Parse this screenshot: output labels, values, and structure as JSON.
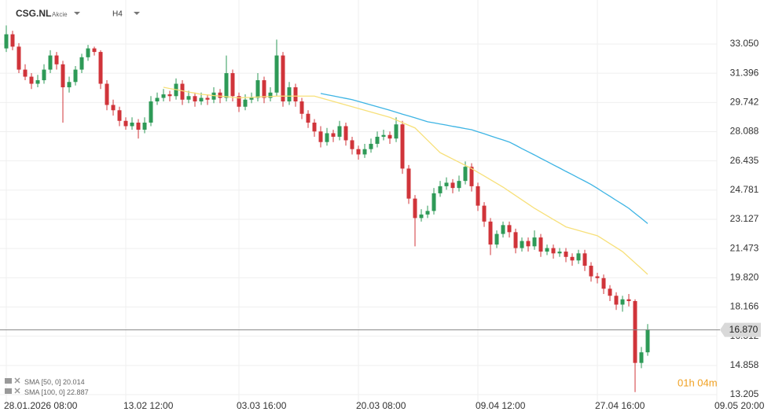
{
  "chart_data": {
    "type": "candlestick",
    "symbol": "CSG.NL",
    "instrument_type": "Akcie",
    "timeframe": "H4",
    "countdown": "01h 04m",
    "last_price": {
      "value": 16.87,
      "label": "16.870"
    },
    "grid": true,
    "up_color": "#2e9a57",
    "down_color": "#d0343a",
    "ylim": [
      12.76,
      35.54
    ],
    "yticks": [
      {
        "value": 33.05,
        "label": "33.050"
      },
      31.396,
      29.742,
      28.088,
      26.435,
      24.781,
      23.127,
      21.473,
      {
        "value": 19.82,
        "label": "19.820"
      },
      18.166,
      16.512,
      14.858,
      13.205
    ],
    "categories": [
      "28.01.2026 08:00",
      null,
      null,
      null,
      null,
      null,
      null,
      null,
      null,
      null,
      null,
      null,
      null,
      null,
      null,
      null,
      null,
      null,
      null,
      "13.02 12:00",
      null,
      null,
      null,
      null,
      null,
      null,
      null,
      null,
      null,
      null,
      null,
      null,
      null,
      null,
      null,
      null,
      null,
      "03.03 16:00",
      null,
      null,
      null,
      null,
      null,
      null,
      null,
      null,
      null,
      null,
      null,
      null,
      null,
      null,
      null,
      null,
      null,
      null,
      "20.03 08:00",
      null,
      null,
      null,
      null,
      null,
      null,
      null,
      null,
      null,
      null,
      null,
      null,
      null,
      null,
      null,
      null,
      null,
      null,
      "09.04 12:00",
      null,
      null,
      null,
      null,
      null,
      null,
      null,
      null,
      null,
      null,
      null,
      null,
      null,
      null,
      null,
      null,
      null,
      null,
      "27.04 16:00",
      null,
      null,
      null,
      null,
      null,
      null,
      null,
      null,
      null,
      null,
      null,
      null,
      null,
      null,
      null,
      null,
      null,
      null,
      "09.05 20:00"
    ],
    "candles": {
      "values": [
        [
          32.8,
          34.1,
          32.6,
          33.6
        ],
        [
          33.6,
          33.8,
          32.7,
          32.9
        ],
        [
          32.9,
          33.1,
          31.4,
          31.6
        ],
        [
          31.6,
          31.9,
          31.0,
          31.2
        ],
        [
          31.2,
          31.4,
          30.5,
          30.8
        ],
        [
          30.8,
          31.3,
          30.6,
          31.0
        ],
        [
          31.0,
          31.9,
          30.8,
          31.6
        ],
        [
          31.6,
          32.7,
          31.4,
          32.4
        ],
        [
          32.4,
          32.6,
          31.6,
          31.9
        ],
        [
          31.9,
          32.1,
          28.6,
          30.6
        ],
        [
          30.6,
          31.2,
          30.3,
          30.9
        ],
        [
          30.9,
          31.8,
          30.7,
          31.6
        ],
        [
          31.6,
          32.5,
          31.4,
          32.3
        ],
        [
          32.3,
          33.0,
          32.1,
          32.8
        ],
        [
          32.8,
          32.9,
          32.4,
          32.6
        ],
        [
          32.6,
          32.7,
          30.5,
          30.8
        ],
        [
          30.8,
          31.0,
          29.3,
          29.6
        ],
        [
          29.6,
          29.9,
          29.0,
          29.3
        ],
        [
          29.3,
          29.5,
          28.4,
          28.7
        ],
        [
          28.7,
          28.9,
          28.2,
          28.4
        ],
        [
          28.4,
          28.9,
          28.2,
          28.6
        ],
        [
          28.6,
          28.8,
          27.7,
          28.2
        ],
        [
          28.2,
          28.9,
          28.0,
          28.6
        ],
        [
          28.6,
          30.1,
          28.4,
          29.8
        ],
        [
          29.8,
          30.3,
          29.6,
          30.0
        ],
        [
          30.0,
          30.5,
          29.8,
          30.2
        ],
        [
          30.2,
          30.4,
          29.8,
          30.1
        ],
        [
          30.1,
          31.1,
          29.9,
          30.8
        ],
        [
          30.8,
          31.0,
          29.6,
          29.9
        ],
        [
          29.9,
          30.4,
          29.7,
          30.1
        ],
        [
          30.1,
          30.3,
          29.5,
          29.8
        ],
        [
          29.8,
          30.3,
          29.6,
          30.0
        ],
        [
          30.0,
          30.2,
          29.6,
          29.9
        ],
        [
          29.9,
          30.6,
          29.7,
          30.3
        ],
        [
          30.3,
          30.5,
          29.7,
          30.0
        ],
        [
          30.0,
          32.4,
          29.8,
          31.4
        ],
        [
          31.4,
          31.6,
          29.8,
          30.1
        ],
        [
          30.1,
          30.3,
          29.2,
          29.5
        ],
        [
          29.5,
          30.2,
          29.3,
          29.9
        ],
        [
          29.9,
          30.3,
          29.7,
          30.0
        ],
        [
          30.0,
          31.4,
          29.8,
          31.0
        ],
        [
          31.0,
          31.2,
          29.7,
          30.0
        ],
        [
          30.0,
          30.6,
          29.8,
          30.3
        ],
        [
          30.3,
          33.3,
          30.1,
          32.4
        ],
        [
          32.4,
          32.6,
          29.5,
          29.8
        ],
        [
          29.8,
          30.9,
          29.6,
          30.6
        ],
        [
          30.6,
          30.8,
          29.5,
          29.8
        ],
        [
          29.8,
          30.0,
          28.8,
          29.1
        ],
        [
          29.1,
          29.3,
          28.3,
          28.6
        ],
        [
          28.6,
          28.8,
          27.8,
          28.1
        ],
        [
          28.1,
          28.4,
          27.2,
          27.5
        ],
        [
          27.5,
          28.3,
          27.3,
          28.0
        ],
        [
          28.0,
          28.2,
          27.5,
          27.8
        ],
        [
          27.8,
          28.7,
          27.6,
          28.4
        ],
        [
          28.4,
          28.6,
          27.3,
          27.6
        ],
        [
          27.6,
          27.8,
          26.8,
          27.1
        ],
        [
          27.1,
          27.3,
          26.5,
          26.8
        ],
        [
          26.8,
          27.4,
          26.6,
          27.1
        ],
        [
          27.1,
          27.7,
          26.9,
          27.4
        ],
        [
          27.4,
          28.1,
          27.2,
          27.8
        ],
        [
          27.8,
          28.2,
          27.6,
          27.9
        ],
        [
          27.9,
          28.1,
          27.4,
          27.7
        ],
        [
          27.7,
          28.9,
          27.5,
          28.5
        ],
        [
          28.5,
          28.7,
          25.7,
          26.0
        ],
        [
          26.0,
          26.2,
          24.0,
          24.3
        ],
        [
          24.3,
          24.5,
          21.6,
          23.2
        ],
        [
          23.2,
          23.7,
          23.0,
          23.4
        ],
        [
          23.4,
          23.9,
          23.2,
          23.6
        ],
        [
          23.6,
          24.9,
          23.4,
          24.6
        ],
        [
          24.6,
          25.3,
          24.4,
          25.0
        ],
        [
          25.0,
          25.5,
          24.8,
          25.2
        ],
        [
          25.2,
          25.4,
          24.6,
          24.9
        ],
        [
          24.9,
          25.6,
          24.7,
          25.3
        ],
        [
          25.3,
          26.4,
          25.1,
          26.1
        ],
        [
          26.1,
          26.3,
          24.7,
          25.0
        ],
        [
          25.0,
          25.2,
          23.6,
          23.9
        ],
        [
          23.9,
          24.1,
          22.7,
          23.0
        ],
        [
          23.0,
          23.2,
          21.1,
          21.7
        ],
        [
          21.7,
          22.5,
          21.5,
          22.3
        ],
        [
          22.3,
          23.0,
          22.1,
          22.8
        ],
        [
          22.8,
          23.0,
          22.1,
          22.4
        ],
        [
          22.4,
          22.6,
          21.2,
          21.5
        ],
        [
          21.5,
          22.1,
          21.3,
          21.9
        ],
        [
          21.9,
          22.1,
          21.3,
          21.6
        ],
        [
          21.6,
          22.5,
          21.4,
          22.1
        ],
        [
          22.1,
          22.3,
          21.0,
          21.3
        ],
        [
          21.3,
          21.7,
          21.1,
          21.5
        ],
        [
          21.5,
          21.7,
          20.9,
          21.2
        ],
        [
          21.2,
          21.5,
          21.0,
          21.3
        ],
        [
          21.3,
          21.5,
          20.7,
          21.0
        ],
        [
          21.0,
          21.2,
          20.5,
          20.8
        ],
        [
          20.8,
          21.4,
          20.6,
          21.2
        ],
        [
          21.2,
          21.4,
          20.2,
          20.5
        ],
        [
          20.5,
          20.7,
          19.6,
          19.9
        ],
        [
          19.9,
          20.1,
          19.5,
          19.8
        ],
        [
          19.8,
          20.0,
          18.9,
          19.2
        ],
        [
          19.2,
          19.4,
          18.5,
          18.8
        ],
        [
          18.8,
          19.0,
          18.0,
          18.3
        ],
        [
          18.3,
          18.8,
          17.9,
          18.6
        ],
        [
          18.6,
          18.9,
          18.2,
          18.5
        ],
        [
          18.5,
          18.6,
          13.35,
          15.0
        ],
        [
          15.0,
          15.9,
          14.7,
          15.6
        ],
        [
          15.6,
          17.2,
          15.4,
          16.9
        ],
        null,
        null,
        null,
        null,
        null,
        null,
        null,
        null,
        null,
        null,
        null
      ]
    },
    "series": [
      {
        "name": "SMA [50, 0]",
        "color": "#f7e07a",
        "values": [
          null,
          null,
          null,
          null,
          null,
          null,
          null,
          null,
          null,
          null,
          null,
          null,
          null,
          null,
          null,
          null,
          null,
          null,
          null,
          null,
          null,
          null,
          null,
          null,
          null,
          30.6,
          30.53,
          30.47,
          30.4,
          30.33,
          30.27,
          30.2,
          30.17,
          30.13,
          30.1,
          30.07,
          30.03,
          30.0,
          30.02,
          30.03,
          30.05,
          30.07,
          30.08,
          30.1,
          30.1,
          30.1,
          30.1,
          30.1,
          30.1,
          30.1,
          30.0,
          29.9,
          29.8,
          29.7,
          29.6,
          29.5,
          29.4,
          29.3,
          29.2,
          29.1,
          29.0,
          28.9,
          28.75,
          28.6,
          28.45,
          28.3,
          27.95,
          27.6,
          27.25,
          26.9,
          26.72,
          26.54,
          26.36,
          26.18,
          26.0,
          25.79,
          25.58,
          25.37,
          25.16,
          24.95,
          24.71,
          24.47,
          24.23,
          23.99,
          23.75,
          23.54,
          23.33,
          23.12,
          22.91,
          22.7,
          22.6,
          22.5,
          22.4,
          22.3,
          22.2,
          21.98,
          21.75,
          21.53,
          21.3,
          20.98,
          20.66,
          20.34,
          20.014,
          null,
          null,
          null,
          null,
          null,
          null,
          null,
          null,
          null,
          null,
          null
        ]
      },
      {
        "name": "SMA [100, 0]",
        "color": "#3db4e4",
        "values": [
          null,
          null,
          null,
          null,
          null,
          null,
          null,
          null,
          null,
          null,
          null,
          null,
          null,
          null,
          null,
          null,
          null,
          null,
          null,
          null,
          null,
          null,
          null,
          null,
          null,
          null,
          null,
          null,
          null,
          null,
          null,
          null,
          null,
          null,
          null,
          null,
          null,
          null,
          null,
          null,
          null,
          null,
          null,
          null,
          null,
          null,
          null,
          null,
          null,
          null,
          30.25,
          30.18,
          30.11,
          30.04,
          29.97,
          29.9,
          29.8,
          29.7,
          29.6,
          29.5,
          29.4,
          29.3,
          29.19,
          29.08,
          28.98,
          28.87,
          28.76,
          28.65,
          28.59,
          28.52,
          28.46,
          28.39,
          28.33,
          28.26,
          28.2,
          28.08,
          27.97,
          27.85,
          27.73,
          27.62,
          27.5,
          27.32,
          27.13,
          26.95,
          26.77,
          26.58,
          26.4,
          26.21,
          26.03,
          25.84,
          25.66,
          25.47,
          25.29,
          25.1,
          24.88,
          24.65,
          24.43,
          24.2,
          23.98,
          23.75,
          23.46,
          23.18,
          22.887,
          null,
          null,
          null,
          null,
          null,
          null,
          null,
          null,
          null,
          null,
          null
        ]
      }
    ]
  }
}
